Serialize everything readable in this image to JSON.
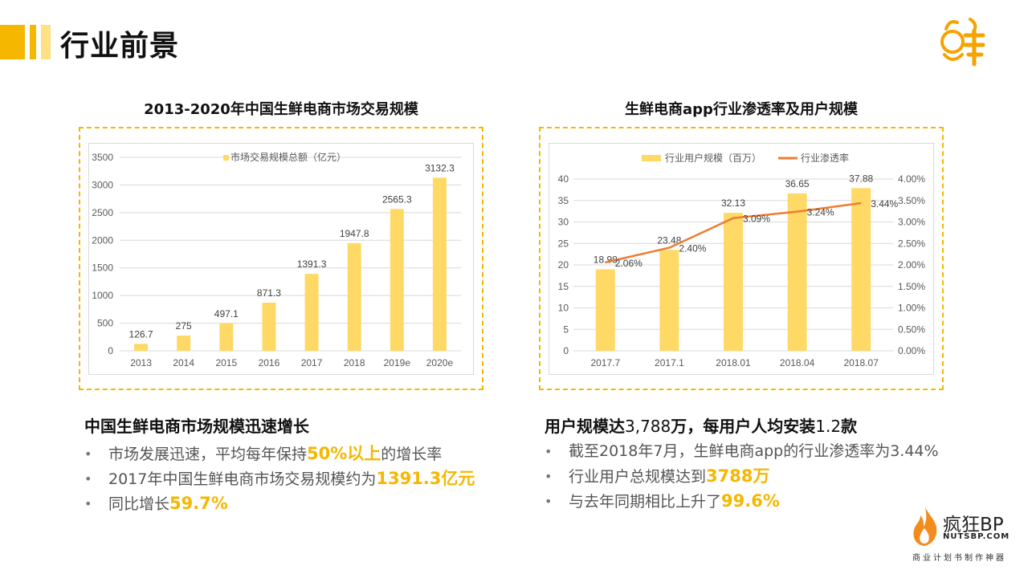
{
  "page": {
    "title": "行业前景",
    "logo_text": "鲜"
  },
  "left_chart": {
    "title": "2013-2020年中国生鲜电商市场交易规模"
  },
  "right_chart": {
    "title": "生鲜电商app行业渗透率及用户规模"
  },
  "chart_data": [
    {
      "type": "bar",
      "categories": [
        "2013",
        "2014",
        "2015",
        "2016",
        "2017",
        "2018",
        "2019e",
        "2020e"
      ],
      "series": [
        {
          "name": "市场交易规模总额（亿元）",
          "values": [
            126.7,
            275,
            497.1,
            871.3,
            1391.3,
            1947.8,
            2565.3,
            3132.3
          ],
          "color": "#FFD966"
        }
      ],
      "data_labels": [
        "126.7",
        "275",
        "497.1",
        "871.3",
        "1391.3",
        "1947.8",
        "2565.3",
        "3132.3"
      ],
      "ylim": [
        0,
        3500
      ],
      "yticks": [
        "0",
        "500",
        "1000",
        "1500",
        "2000",
        "2500",
        "3000",
        "3500"
      ],
      "legend_position": "top",
      "grid": true
    },
    {
      "type": "bar",
      "categories": [
        "2017.7",
        "2017.1",
        "2018.01",
        "2018.04",
        "2018.07"
      ],
      "series": [
        {
          "name": "行业用户规模（百万）",
          "values": [
            18.98,
            23.48,
            32.13,
            36.65,
            37.88
          ],
          "color": "#FFD966",
          "axis": "left"
        },
        {
          "name": "行业渗透率",
          "type": "line",
          "values": [
            2.06,
            2.4,
            3.09,
            3.24,
            3.44
          ],
          "color": "#ED7D31",
          "axis": "right"
        }
      ],
      "bar_labels": [
        "18.98",
        "23.48",
        "32.13",
        "36.65",
        "37.88"
      ],
      "line_labels": [
        "2.06%",
        "2.40%",
        "3.09%",
        "3.24%",
        "3.44%"
      ],
      "ylim": [
        0,
        40
      ],
      "yticks": [
        "0",
        "5",
        "10",
        "15",
        "20",
        "25",
        "30",
        "35",
        "40"
      ],
      "y2lim": [
        0,
        4
      ],
      "y2ticks": [
        "0.00%",
        "0.50%",
        "1.00%",
        "1.50%",
        "2.00%",
        "2.50%",
        "3.00%",
        "3.50%",
        "4.00%"
      ],
      "legend_position": "top",
      "grid": true
    }
  ],
  "left_section": {
    "heading": "中国生鲜电商市场规模迅速增长",
    "bullets": [
      {
        "text": "市场发展迅速，平均每年保持",
        "highlight": "50%以上",
        "suffix": "的增长率"
      },
      {
        "text": "2017年中国生鲜电商市场交易规模约为",
        "highlight": "1391.3亿元",
        "suffix": ""
      },
      {
        "text": "同比增长",
        "highlight": "59.7%",
        "suffix": ""
      }
    ]
  },
  "right_section": {
    "heading_part1": "用户规模达",
    "heading_num1": "3,788",
    "heading_part2": "万，每用户人均安装",
    "heading_num2": "1.2",
    "heading_part3": "款",
    "bullets": [
      {
        "text": "截至2018年7月，生鲜电商app的行业渗透率为3.44%",
        "highlight": "",
        "suffix": ""
      },
      {
        "text": "行业用户总规模达到",
        "highlight": "3788万",
        "suffix": ""
      },
      {
        "text": "与去年同期相比上升了",
        "highlight": "99.6%",
        "suffix": ""
      }
    ]
  },
  "brand": {
    "name": "疯狂BP",
    "url": "NUTSBP.COM",
    "slogan": "商业计划书制作神器"
  },
  "colors": {
    "accent": "#F5B700",
    "bar": "#FFD966",
    "line": "#ED7D31"
  }
}
